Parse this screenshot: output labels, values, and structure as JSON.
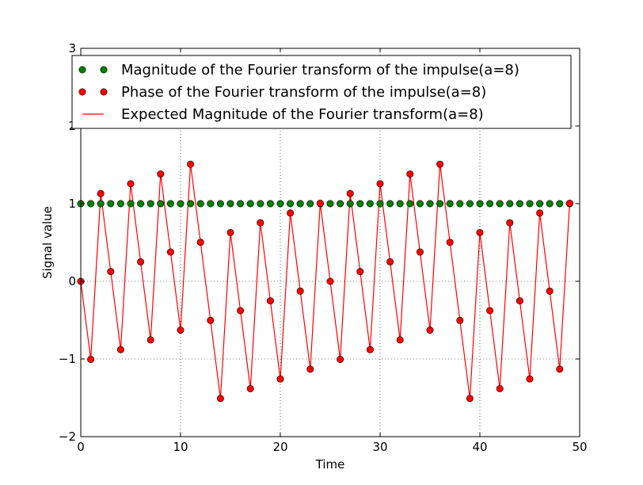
{
  "chart_data": {
    "type": "line",
    "xlabel": "Time",
    "ylabel": "Signal value",
    "xlim": [
      0,
      50
    ],
    "ylim": [
      -2,
      3
    ],
    "xticks": [
      0,
      10,
      20,
      30,
      40,
      50
    ],
    "yticks": [
      -2,
      -1,
      0,
      1,
      2,
      3
    ],
    "xtick_labels": [
      "0",
      "10",
      "20",
      "30",
      "40",
      "50"
    ],
    "ytick_labels": [
      "−2",
      "−1",
      "0",
      "1",
      "2",
      "3"
    ],
    "grid": true,
    "legend_position": "top",
    "colors": {
      "magnitude": "#008000",
      "phase": "#ff0000",
      "expected": "#ff0000"
    },
    "x": [
      0,
      1,
      2,
      3,
      4,
      5,
      6,
      7,
      8,
      9,
      10,
      11,
      12,
      13,
      14,
      15,
      16,
      17,
      18,
      19,
      20,
      21,
      22,
      23,
      24,
      25,
      26,
      27,
      28,
      29,
      30,
      31,
      32,
      33,
      34,
      35,
      36,
      37,
      38,
      39,
      40,
      41,
      42,
      43,
      44,
      45,
      46,
      47,
      48,
      49
    ],
    "series": [
      {
        "name": "Magnitude of the Fourier transform of the impulse(a=8)",
        "style": "markers",
        "values": [
          1,
          1,
          1,
          1,
          1,
          1,
          1,
          1,
          1,
          1,
          1,
          1,
          1,
          1,
          1,
          1,
          1,
          1,
          1,
          1,
          1,
          1,
          1,
          1,
          1,
          1,
          1,
          1,
          1,
          1,
          1,
          1,
          1,
          1,
          1,
          1,
          1,
          1,
          1,
          1,
          1,
          1,
          1,
          1,
          1,
          1,
          1,
          1,
          1,
          1
        ]
      },
      {
        "name": "Phase of the Fourier transform of the impulse(a=8)",
        "style": "markers",
        "values": [
          0,
          -1.005,
          1.131,
          0.126,
          -0.88,
          1.257,
          0.251,
          -0.754,
          1.382,
          0.377,
          -0.628,
          1.508,
          0.503,
          -0.503,
          -1.508,
          0.628,
          -0.377,
          -1.382,
          0.754,
          -0.251,
          -1.257,
          0.88,
          -0.126,
          -1.131,
          1.005,
          0,
          -1.005,
          1.131,
          0.126,
          -0.88,
          1.257,
          0.251,
          -0.754,
          1.382,
          0.377,
          -0.628,
          1.508,
          0.503,
          -0.503,
          -1.508,
          0.628,
          -0.377,
          -1.382,
          0.754,
          -0.251,
          -1.257,
          0.88,
          -0.126,
          -1.131,
          1.005
        ]
      },
      {
        "name": "Expected Magnitude of the Fourier transform(a=8)",
        "style": "line",
        "values": [
          0,
          -1.005,
          1.131,
          0.126,
          -0.88,
          1.257,
          0.251,
          -0.754,
          1.382,
          0.377,
          -0.628,
          1.508,
          0.503,
          -0.503,
          -1.508,
          0.628,
          -0.377,
          -1.382,
          0.754,
          -0.251,
          -1.257,
          0.88,
          -0.126,
          -1.131,
          1.005,
          0,
          -1.005,
          1.131,
          0.126,
          -0.88,
          1.257,
          0.251,
          -0.754,
          1.382,
          0.377,
          -0.628,
          1.508,
          0.503,
          -0.503,
          -1.508,
          0.628,
          -0.377,
          -1.382,
          0.754,
          -0.251,
          -1.257,
          0.88,
          -0.126,
          -1.131,
          1.005
        ]
      }
    ]
  }
}
